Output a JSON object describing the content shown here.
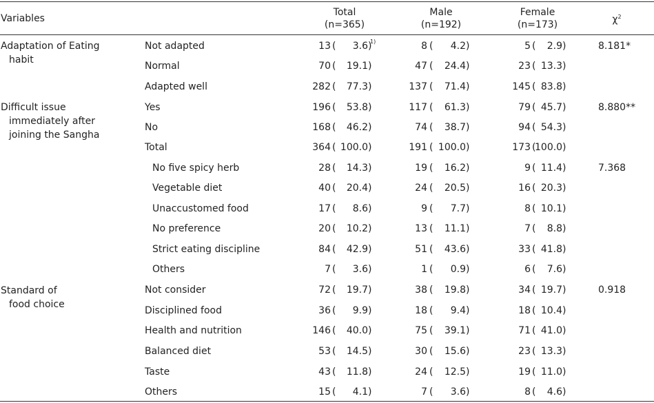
{
  "header": {
    "variables": "Variables",
    "total_1": "Total",
    "total_2": "(n=365)",
    "male_1": "Male",
    "male_2": "(n=192)",
    "female_1": "Female",
    "female_2": "(n=173)",
    "chi_base": "χ",
    "chi_sup": "2"
  },
  "footnote_mark": "1)",
  "groups": [
    {
      "line1": "Adaptation of Eating",
      "line2": "habit",
      "line3": ""
    },
    {
      "line1": "Difficult issue",
      "line2": "immediately after",
      "line3": "joining the Sangha"
    },
    {
      "line1": "Standard of",
      "line2": "food choice",
      "line3": ""
    }
  ],
  "rows": [
    {
      "cat": "Not adapted",
      "tn": "13",
      "tp": "3.6",
      "mn": "8",
      "mp": "4.2",
      "fn": "5",
      "fp": "2.9",
      "chi": "8.181*"
    },
    {
      "cat": "Normal",
      "tn": "70",
      "tp": "19.1",
      "mn": "47",
      "mp": "24.4",
      "fn": "23",
      "fp": "13.3",
      "chi": ""
    },
    {
      "cat": "Adapted well",
      "tn": "282",
      "tp": "77.3",
      "mn": "137",
      "mp": "71.4",
      "fn": "145",
      "fp": "83.8",
      "chi": ""
    },
    {
      "cat": "Yes",
      "tn": "196",
      "tp": "53.8",
      "mn": "117",
      "mp": "61.3",
      "fn": "79",
      "fp": "45.7",
      "chi": "8.880**"
    },
    {
      "cat": "No",
      "tn": "168",
      "tp": "46.2",
      "mn": "74",
      "mp": "38.7",
      "fn": "94",
      "fp": "54.3",
      "chi": ""
    },
    {
      "cat": "Total",
      "tn": "364",
      "tp": "100.0",
      "mn": "191",
      "mp": "100.0",
      "fn": "173",
      "fp": "100.0",
      "chi": ""
    },
    {
      "cat": "No five spicy herb",
      "tn": "28",
      "tp": "14.3",
      "mn": "19",
      "mp": "16.2",
      "fn": "9",
      "fp": "11.4",
      "chi": "7.368"
    },
    {
      "cat": "Vegetable diet",
      "tn": "40",
      "tp": "20.4",
      "mn": "24",
      "mp": "20.5",
      "fn": "16",
      "fp": "20.3",
      "chi": ""
    },
    {
      "cat": "Unaccustomed food",
      "tn": "17",
      "tp": "8.6",
      "mn": "9",
      "mp": "7.7",
      "fn": "8",
      "fp": "10.1",
      "chi": ""
    },
    {
      "cat": "No preference",
      "tn": "20",
      "tp": "10.2",
      "mn": "13",
      "mp": "11.1",
      "fn": "7",
      "fp": "8.8",
      "chi": ""
    },
    {
      "cat": "Strict eating discipline",
      "tn": "84",
      "tp": "42.9",
      "mn": "51",
      "mp": "43.6",
      "fn": "33",
      "fp": "41.8",
      "chi": ""
    },
    {
      "cat": "Others",
      "tn": "7",
      "tp": "3.6",
      "mn": "1",
      "mp": "0.9",
      "fn": "6",
      "fp": "7.6",
      "chi": ""
    },
    {
      "cat": "Not consider",
      "tn": "72",
      "tp": "19.7",
      "mn": "38",
      "mp": "19.8",
      "fn": "34",
      "fp": "19.7",
      "chi": "0.918"
    },
    {
      "cat": "Disciplined food",
      "tn": "36",
      "tp": "9.9",
      "mn": "18",
      "mp": "9.4",
      "fn": "18",
      "fp": "10.4",
      "chi": ""
    },
    {
      "cat": "Health and nutrition",
      "tn": "146",
      "tp": "40.0",
      "mn": "75",
      "mp": "39.1",
      "fn": "71",
      "fp": "41.0",
      "chi": ""
    },
    {
      "cat": "Balanced diet",
      "tn": "53",
      "tp": "14.5",
      "mn": "30",
      "mp": "15.6",
      "fn": "23",
      "fp": "13.3",
      "chi": ""
    },
    {
      "cat": "Taste",
      "tn": "43",
      "tp": "11.8",
      "mn": "24",
      "mp": "12.5",
      "fn": "19",
      "fp": "11.0",
      "chi": ""
    },
    {
      "cat": "Others",
      "tn": "15",
      "tp": "4.1",
      "mn": "7",
      "mp": "3.6",
      "fn": "8",
      "fp": "4.6",
      "chi": ""
    }
  ]
}
